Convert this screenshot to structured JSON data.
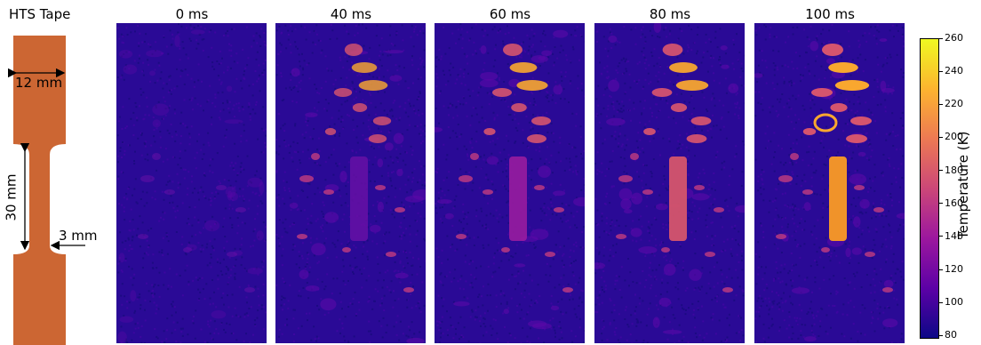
{
  "tape": {
    "title": "HTS Tape",
    "width_label": "12 mm",
    "length_label": "30 mm",
    "neck_label": "3 mm",
    "color": "#cc6633"
  },
  "frames": [
    {
      "label": "0 ms",
      "hot_intensity": 0.0
    },
    {
      "label": "40 ms",
      "hot_intensity": 0.55
    },
    {
      "label": "60 ms",
      "hot_intensity": 0.75
    },
    {
      "label": "80 ms",
      "hot_intensity": 0.85
    },
    {
      "label": "100 ms",
      "hot_intensity": 1.0
    }
  ],
  "colorbar": {
    "label": "Temperature (K)",
    "ticks": [
      "260",
      "240",
      "220",
      "200",
      "180",
      "160",
      "140",
      "120",
      "100",
      "80"
    ],
    "range": [
      78,
      260
    ],
    "colormap": "plasma",
    "colors": [
      "#0d0887",
      "#5c01a6",
      "#9c179e",
      "#cc4778",
      "#ed7953",
      "#fdb42f",
      "#f0f921"
    ]
  }
}
